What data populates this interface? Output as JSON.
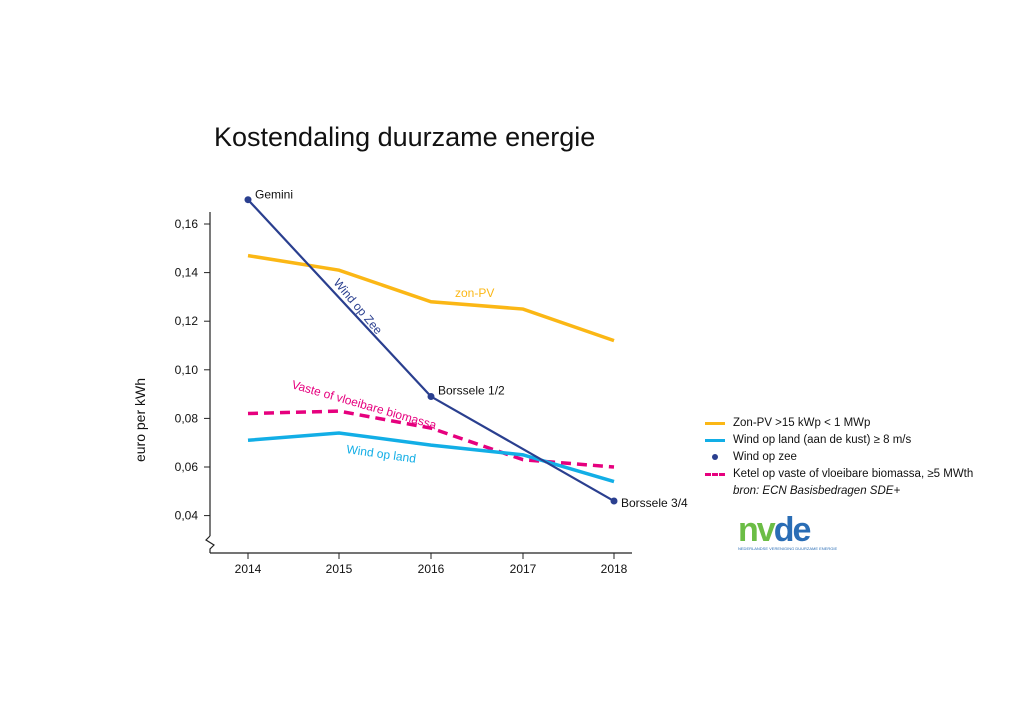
{
  "title": "Kostendaling duurzame energie",
  "chart_data": {
    "type": "line",
    "ylabel": "euro per kWh",
    "xlabel": "",
    "x": [
      "2014",
      "2015",
      "2016",
      "2017",
      "2018"
    ],
    "ylim": [
      0.03,
      0.17
    ],
    "y_ticks": [
      "0,04",
      "0,06",
      "0,08",
      "0,10",
      "0,12",
      "0,14",
      "0,16"
    ],
    "y_tick_values": [
      0.04,
      0.06,
      0.08,
      0.1,
      0.12,
      0.14,
      0.16
    ],
    "grid": false,
    "legend_position": "right",
    "series": [
      {
        "name": "Zon-PV >15 kWp < 1 MWp",
        "inline_label": "zon-PV",
        "color": "#fbb715",
        "style": "solid",
        "values": [
          0.147,
          0.141,
          0.128,
          0.125,
          0.112
        ]
      },
      {
        "name": "Wind op land (aan de kust) ≥ 8 m/s",
        "inline_label": "Wind op land",
        "color": "#12aee6",
        "style": "solid",
        "values": [
          0.071,
          0.074,
          0.069,
          0.065,
          0.054
        ]
      },
      {
        "name": "Wind op zee",
        "inline_label": "Wind op Zee",
        "color": "#2a3f8f",
        "style": "points",
        "x": [
          "2014",
          "2016",
          "2018"
        ],
        "values": [
          0.17,
          0.089,
          0.046
        ],
        "point_labels": [
          "Gemini",
          "Borssele 1/2",
          "Borssele 3/4"
        ]
      },
      {
        "name": "Ketel op vaste of vloeibare biomassa, ≥5 MWth",
        "inline_label": "Vaste of vloeibare biomassa",
        "color": "#e6007e",
        "style": "dashed",
        "values": [
          0.082,
          0.083,
          0.076,
          0.063,
          0.06
        ]
      }
    ],
    "source": "bron: ECN Basisbedragen SDE+"
  },
  "logo": {
    "letters": [
      "n",
      "v",
      "d",
      "e"
    ],
    "colors": [
      "#6bbd45",
      "#6bbd45",
      "#2a6db5",
      "#2a6db5"
    ],
    "subtitle": "NEDERLANDSE VERENIGING DUURZAME ENERGIE"
  }
}
